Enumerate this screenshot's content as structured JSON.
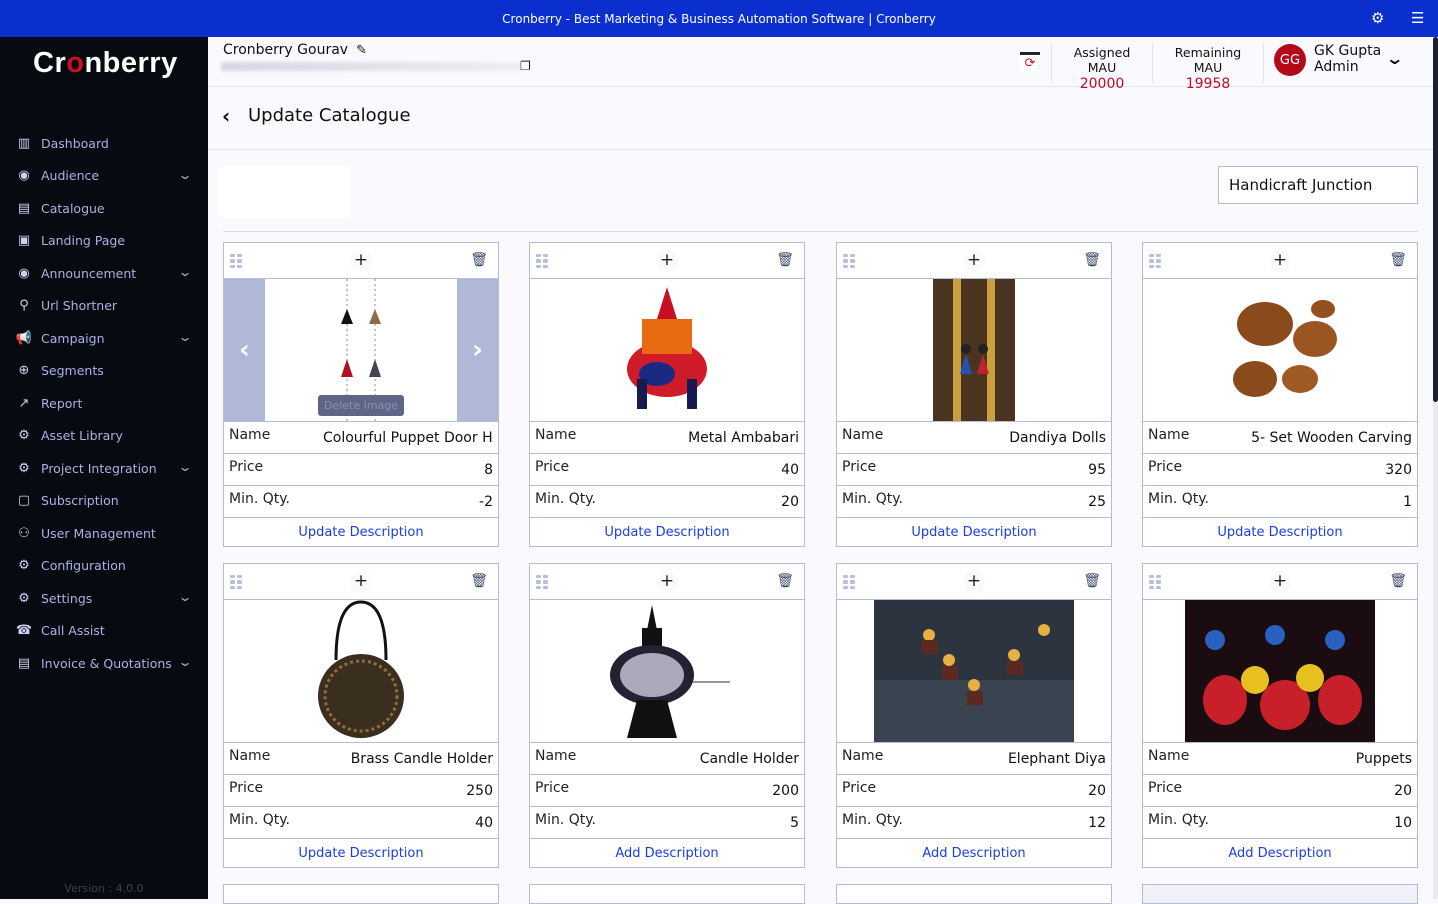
{
  "window": {
    "title": "Cronberry - Best Marketing & Business Automation Software | Cronberry",
    "puzzle_icon": "puzzle-icon",
    "menu_icon": "hamburger-icon"
  },
  "sidebar": {
    "logo": "Cronberry",
    "version": "Version : 4.0.0",
    "items": [
      {
        "label": "Dashboard",
        "icon": "▥",
        "expand": false
      },
      {
        "label": "Audience",
        "icon": "◉",
        "expand": true
      },
      {
        "label": "Catalogue",
        "icon": "▤",
        "expand": false
      },
      {
        "label": "Landing Page",
        "icon": "▣",
        "expand": false
      },
      {
        "label": "Announcement",
        "icon": "◉",
        "expand": true
      },
      {
        "label": "Url Shortner",
        "icon": "⚲",
        "expand": false
      },
      {
        "label": "Campaign",
        "icon": "📢",
        "expand": true
      },
      {
        "label": "Segments",
        "icon": "⊕",
        "expand": false
      },
      {
        "label": "Report",
        "icon": "↗",
        "expand": false
      },
      {
        "label": "Asset Library",
        "icon": "⚙",
        "expand": false
      },
      {
        "label": "Project Integration",
        "icon": "⚙",
        "expand": true
      },
      {
        "label": "Subscription",
        "icon": "▢",
        "expand": false
      },
      {
        "label": "User Management",
        "icon": "⚇",
        "expand": false
      },
      {
        "label": "Configuration",
        "icon": "⚙",
        "expand": false
      },
      {
        "label": "Settings",
        "icon": "⚙",
        "expand": true
      },
      {
        "label": "Call Assist",
        "icon": "☎",
        "expand": false
      },
      {
        "label": "Invoice & Quotations",
        "icon": "▤",
        "expand": true
      }
    ]
  },
  "header": {
    "account": "Cronberry Gourav",
    "assigned_label": "Assigned MAU",
    "assigned_value": "20000",
    "remaining_label": "Remaining MAU",
    "remaining_value": "19958",
    "avatar": "GG",
    "user_name": "GK Gupta",
    "user_role": "Admin"
  },
  "page": {
    "title": "Update Catalogue",
    "store": "Handicraft Junction"
  },
  "labels": {
    "name": "Name",
    "price": "Price",
    "min_qty": "Min. Qty.",
    "delete_image": "Delete Image"
  },
  "products": [
    {
      "name": "Colourful Puppet Door Hanging",
      "price": "8",
      "min_qty": "-2",
      "action": "Update Description",
      "image": "puppet-door-hanging",
      "carousel": true
    },
    {
      "name": "Metal Ambabari",
      "price": "40",
      "min_qty": "20",
      "action": "Update Description",
      "image": "metal-ambabari"
    },
    {
      "name": "Dandiya Dolls",
      "price": "95",
      "min_qty": "25",
      "action": "Update Description",
      "image": "dandiya-dolls"
    },
    {
      "name": "5- Set Wooden Carving",
      "price": "320",
      "min_qty": "1",
      "action": "Update Description",
      "image": "wooden-carving"
    },
    {
      "name": "Brass Candle Holder",
      "price": "250",
      "min_qty": "40",
      "action": "Update Description",
      "image": "brass-candle-holder"
    },
    {
      "name": "Candle Holder",
      "price": "200",
      "min_qty": "5",
      "action": "Add Description",
      "image": "candle-holder"
    },
    {
      "name": "Elephant Diya",
      "price": "20",
      "min_qty": "12",
      "action": "Add Description",
      "image": "elephant-diya"
    },
    {
      "name": "Puppets",
      "price": "20",
      "min_qty": "10",
      "action": "Add Description",
      "image": "puppets"
    }
  ]
}
